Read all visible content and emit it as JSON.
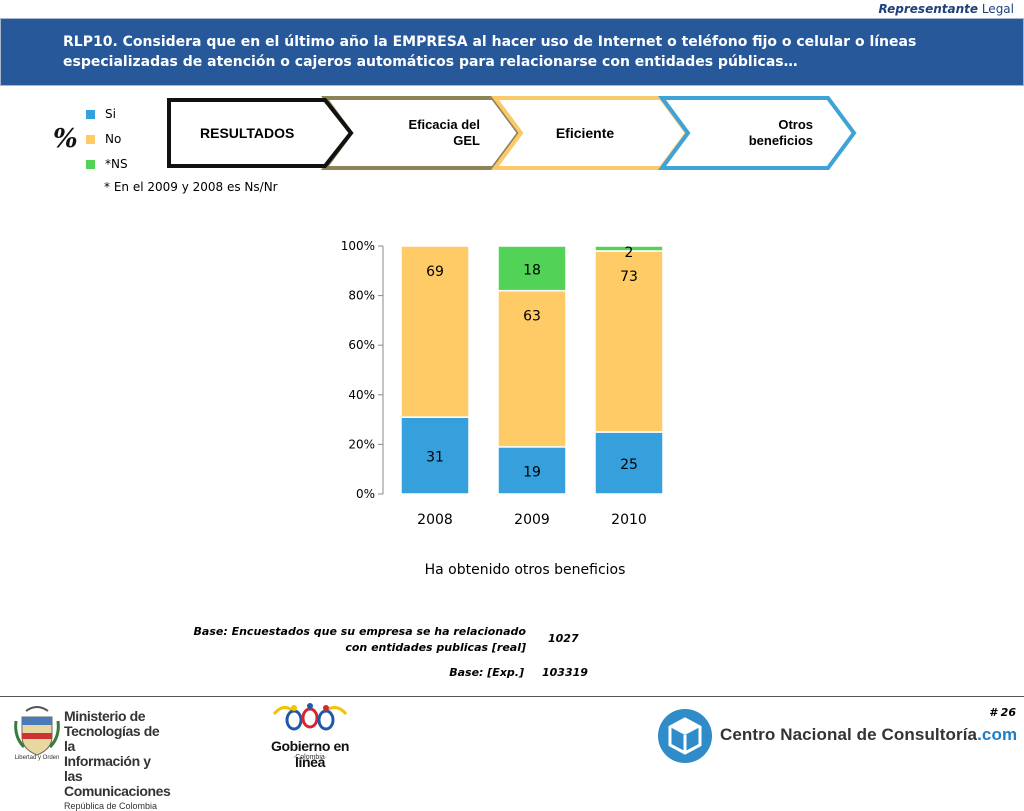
{
  "header": {
    "role_italic": "Representante",
    "role_rest": " Legal",
    "question": "RLP10. Considera que en el último año la EMPRESA al hacer uso de Internet o teléfono fijo o celular o líneas especializadas de atención o cajeros automáticos para relacionarse con entidades públicas…"
  },
  "legend": {
    "items": [
      {
        "label": "Si",
        "color": "#35a0db"
      },
      {
        "label": "No",
        "color": "#fecb66"
      },
      {
        "label": "*NS",
        "color": "#52d257"
      }
    ],
    "percent_symbol": "%",
    "footnote": "* En el 2009 y 2008 es Ns/Nr"
  },
  "chevrons": [
    {
      "label": "RESULTADOS",
      "border": "#111111"
    },
    {
      "label": "Eficacia del GEL",
      "border": "#8c8456"
    },
    {
      "label": "Eficiente",
      "border": "#f9c96a"
    },
    {
      "label": "Otros beneficios",
      "border": "#3fa3d6"
    }
  ],
  "chart_data": {
    "type": "bar",
    "stacked": true,
    "categories": [
      "2008",
      "2009",
      "2010"
    ],
    "series": [
      {
        "name": "Si",
        "values": [
          31,
          19,
          25
        ],
        "color": "#35a0db"
      },
      {
        "name": "No",
        "values": [
          69,
          63,
          73
        ],
        "color": "#fecb66"
      },
      {
        "name": "*NS",
        "values": [
          null,
          18,
          2
        ],
        "color": "#52d257"
      }
    ],
    "y_ticks": [
      "0%",
      "20%",
      "40%",
      "60%",
      "80%",
      "100%"
    ],
    "ylim": [
      0,
      100
    ],
    "xlabel": "Ha obtenido otros beneficios",
    "grid": false
  },
  "base": {
    "real_label": "Base: Encuestados que su empresa se ha relacionado con entidades publicas [real]",
    "real_value": "1027",
    "exp_label": "Base: [Exp.]",
    "exp_value": "103319"
  },
  "footer": {
    "page_number": "# 26",
    "mintic_line1": "Ministerio de Tecnologías de la",
    "mintic_line2": "Información y las Comunicaciones",
    "mintic_line3": "República de Colombia",
    "mintic_motto": "Libertad y Orden",
    "gel_name": "Gobierno en línea",
    "gel_country": "·Colombia·",
    "cnc_name": "Centro Nacional de Consultoría",
    "cnc_suffix": ".com"
  }
}
